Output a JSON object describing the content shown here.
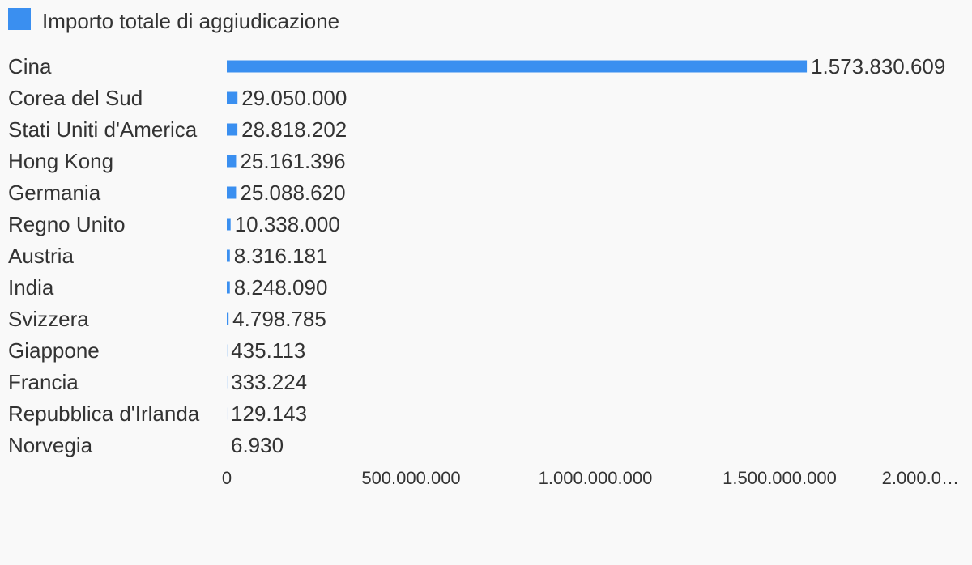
{
  "colors": {
    "bar": "#3a8ff0",
    "background": "#f9f9f9",
    "text": "#333333"
  },
  "legend": {
    "label": "Importo totale di aggiudicazione",
    "swatch_icon": "square-swatch-icon"
  },
  "chart_data": {
    "type": "bar",
    "orientation": "horizontal",
    "categories": [
      "Cina",
      "Corea del Sud",
      "Stati Uniti d'America",
      "Hong Kong",
      "Germania",
      "Regno Unito",
      "Austria",
      "India",
      "Svizzera",
      "Giappone",
      "Francia",
      "Repubblica d'Irlanda",
      "Norvegia"
    ],
    "series": [
      {
        "name": "Importo totale di aggiudicazione",
        "values": [
          1573830609,
          29050000,
          28818202,
          25161396,
          25088620,
          10338000,
          8316181,
          8248090,
          4798785,
          435113,
          333224,
          129143,
          6930
        ],
        "value_labels": [
          "1.573.830.609",
          "29.050.000",
          "28.818.202",
          "25.161.396",
          "25.088.620",
          "10.338.000",
          "8.316.181",
          "8.248.090",
          "4.798.785",
          "435.113",
          "333.224",
          "129.143",
          "6.930"
        ]
      }
    ],
    "xlim": [
      0,
      2000000000
    ],
    "x_ticks": [
      0,
      500000000,
      1000000000,
      1500000000,
      2000000000
    ],
    "x_tick_labels": [
      "0",
      "500.000.000",
      "1.000.000.000",
      "1.500.000.000",
      "2.000.0…"
    ],
    "legend_position": "top-left",
    "grid": false
  }
}
